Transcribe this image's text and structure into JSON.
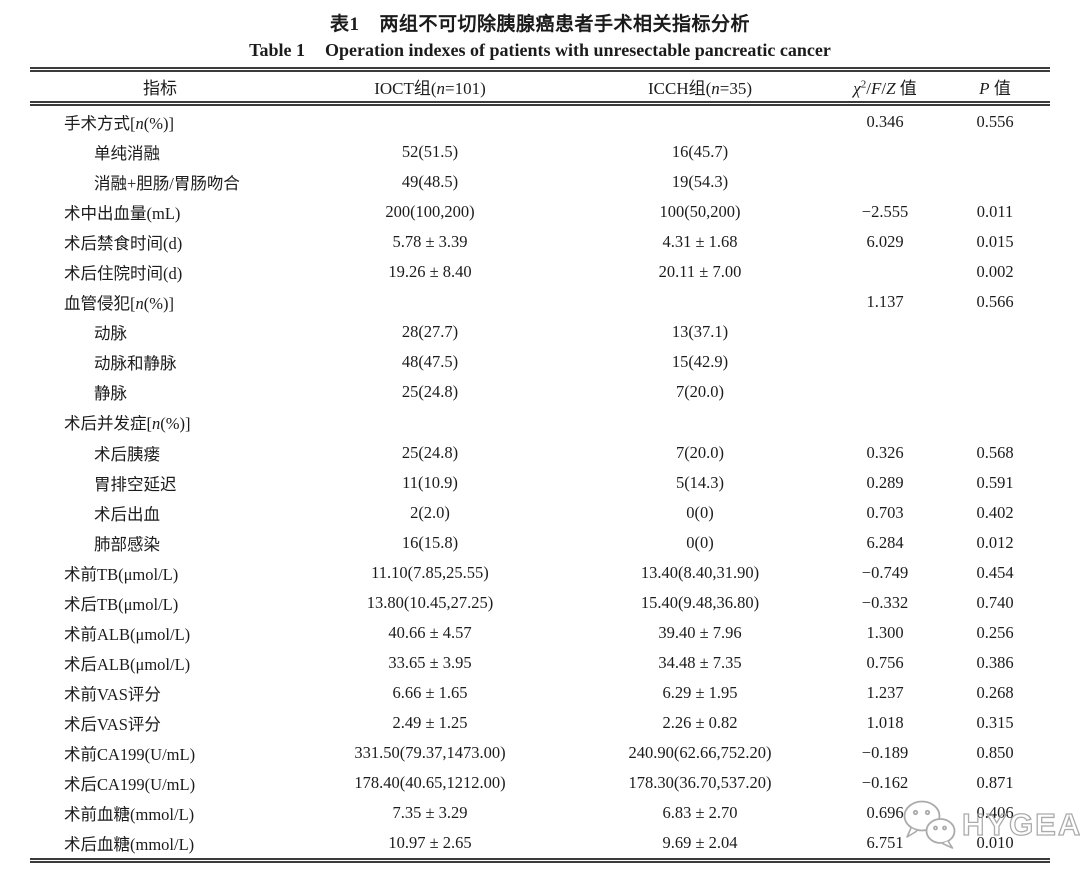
{
  "title": {
    "zh_label": "表1",
    "zh_text": "两组不可切除胰腺癌患者手术相关指标分析",
    "en_label": "Table 1",
    "en_text": "Operation indexes of patients with unresectable pancreatic cancer"
  },
  "table": {
    "columns": {
      "indicator": "指标",
      "ioct": {
        "prefix": "IOCT组(",
        "n": "n",
        "suffix": "=101)"
      },
      "icch": {
        "prefix": "ICCH组(",
        "n": "n",
        "suffix": "=35)"
      },
      "chi": {
        "sym": "χ",
        "sup": "2",
        "sep1": "/",
        "f": "F",
        "sep2": "/",
        "z": "Z",
        "suffix": " 值"
      },
      "p": {
        "sym": "P",
        "suffix": " 值"
      }
    },
    "rows": [
      {
        "label": "手术方式[*n*(%)]",
        "indent": 0,
        "ioct": "",
        "icch": "",
        "chi": "0.346",
        "p": "0.556"
      },
      {
        "label": "单纯消融",
        "indent": 1,
        "ioct": "52(51.5)",
        "icch": "16(45.7)",
        "chi": "",
        "p": ""
      },
      {
        "label": "消融+胆肠/胃肠吻合",
        "indent": 1,
        "ioct": "49(48.5)",
        "icch": "19(54.3)",
        "chi": "",
        "p": ""
      },
      {
        "label": "术中出血量(mL)",
        "indent": 0,
        "ioct": "200(100,200)",
        "icch": "100(50,200)",
        "chi": "−2.555",
        "p": "0.011"
      },
      {
        "label": "术后禁食时间(d)",
        "indent": 0,
        "ioct": "5.78 ± 3.39",
        "icch": "4.31 ± 1.68",
        "chi": "6.029",
        "p": "0.015"
      },
      {
        "label": "术后住院时间(d)",
        "indent": 0,
        "ioct": "19.26 ± 8.40",
        "icch": "20.11 ± 7.00",
        "chi": "",
        "p": "0.002"
      },
      {
        "label": "血管侵犯[*n*(%)]",
        "indent": 0,
        "ioct": "",
        "icch": "",
        "chi": "1.137",
        "p": "0.566"
      },
      {
        "label": "动脉",
        "indent": 1,
        "ioct": "28(27.7)",
        "icch": "13(37.1)",
        "chi": "",
        "p": ""
      },
      {
        "label": "动脉和静脉",
        "indent": 1,
        "ioct": "48(47.5)",
        "icch": "15(42.9)",
        "chi": "",
        "p": ""
      },
      {
        "label": "静脉",
        "indent": 1,
        "ioct": "25(24.8)",
        "icch": "7(20.0)",
        "chi": "",
        "p": ""
      },
      {
        "label": "术后并发症[*n*(%)]",
        "indent": 0,
        "ioct": "",
        "icch": "",
        "chi": "",
        "p": ""
      },
      {
        "label": "术后胰瘘",
        "indent": 1,
        "ioct": "25(24.8)",
        "icch": "7(20.0)",
        "chi": "0.326",
        "p": "0.568"
      },
      {
        "label": "胃排空延迟",
        "indent": 1,
        "ioct": "11(10.9)",
        "icch": "5(14.3)",
        "chi": "0.289",
        "p": "0.591"
      },
      {
        "label": "术后出血",
        "indent": 1,
        "ioct": "2(2.0)",
        "icch": "0(0)",
        "chi": "0.703",
        "p": "0.402"
      },
      {
        "label": "肺部感染",
        "indent": 1,
        "ioct": "16(15.8)",
        "icch": "0(0)",
        "chi": "6.284",
        "p": "0.012"
      },
      {
        "label": "术前TB(μmol/L)",
        "indent": 0,
        "ioct": "11.10(7.85,25.55)",
        "icch": "13.40(8.40,31.90)",
        "chi": "−0.749",
        "p": "0.454"
      },
      {
        "label": "术后TB(μmol/L)",
        "indent": 0,
        "ioct": "13.80(10.45,27.25)",
        "icch": "15.40(9.48,36.80)",
        "chi": "−0.332",
        "p": "0.740"
      },
      {
        "label": "术前ALB(μmol/L)",
        "indent": 0,
        "ioct": "40.66 ± 4.57",
        "icch": "39.40 ± 7.96",
        "chi": "1.300",
        "p": "0.256"
      },
      {
        "label": "术后ALB(μmol/L)",
        "indent": 0,
        "ioct": "33.65 ± 3.95",
        "icch": "34.48 ± 7.35",
        "chi": "0.756",
        "p": "0.386"
      },
      {
        "label": "术前VAS评分",
        "indent": 0,
        "ioct": "6.66 ± 1.65",
        "icch": "6.29 ± 1.95",
        "chi": "1.237",
        "p": "0.268"
      },
      {
        "label": "术后VAS评分",
        "indent": 0,
        "ioct": "2.49 ± 1.25",
        "icch": "2.26 ± 0.82",
        "chi": "1.018",
        "p": "0.315"
      },
      {
        "label": "术前CA199(U/mL)",
        "indent": 0,
        "ioct": "331.50(79.37,1473.00)",
        "icch": "240.90(62.66,752.20)",
        "chi": "−0.189",
        "p": "0.850"
      },
      {
        "label": "术后CA199(U/mL)",
        "indent": 0,
        "ioct": "178.40(40.65,1212.00)",
        "icch": "178.30(36.70,537.20)",
        "chi": "−0.162",
        "p": "0.871"
      },
      {
        "label": "术前血糖(mmol/L)",
        "indent": 0,
        "ioct": "7.35 ± 3.29",
        "icch": "6.83 ± 2.70",
        "chi": "0.696",
        "p": "0.406"
      },
      {
        "label": "术后血糖(mmol/L)",
        "indent": 0,
        "ioct": "10.97 ± 2.65",
        "icch": "9.69 ± 2.04",
        "chi": "6.751",
        "p": "0.010"
      }
    ]
  },
  "watermark": {
    "text": "HYGEA",
    "icon": "wechat-icon",
    "color": "#a3a3a3"
  },
  "colors": {
    "text": "#1b1b1b",
    "rule": "#3b3b3b",
    "background": "#ffffff"
  }
}
